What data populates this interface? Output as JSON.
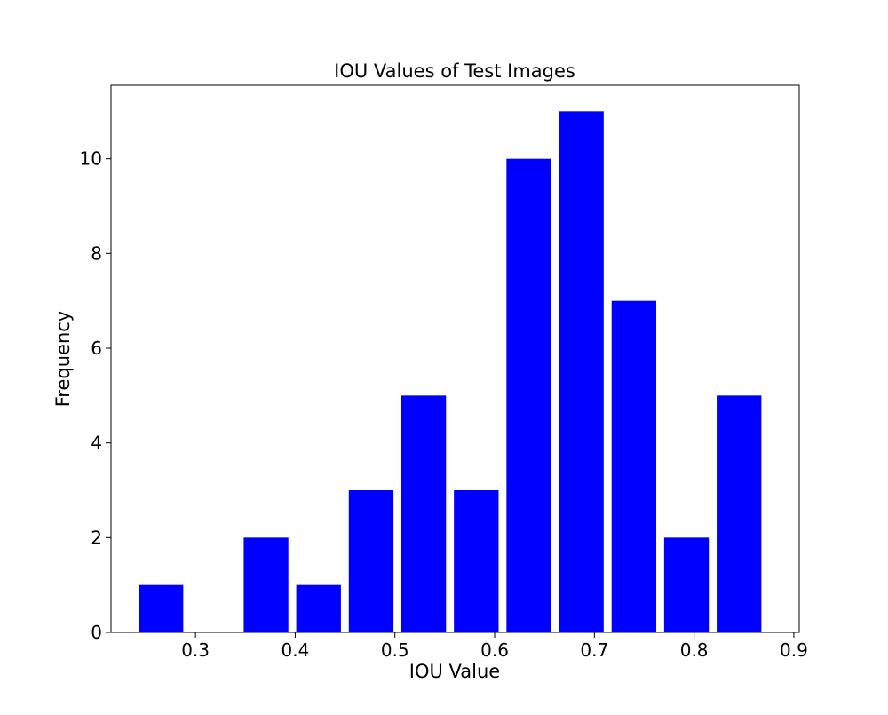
{
  "chart_data": {
    "type": "bar",
    "title": "IOU Values of Test Images",
    "xlabel": "IOU Value",
    "ylabel": "Frequency",
    "bin_width": 0.0527,
    "bar_rwidth": 0.85,
    "bins": [
      {
        "start": 0.239,
        "count": 1
      },
      {
        "start": 0.2917,
        "count": 0
      },
      {
        "start": 0.3444,
        "count": 2
      },
      {
        "start": 0.3971,
        "count": 1
      },
      {
        "start": 0.4498,
        "count": 3
      },
      {
        "start": 0.5025,
        "count": 5
      },
      {
        "start": 0.5552,
        "count": 3
      },
      {
        "start": 0.6079,
        "count": 10
      },
      {
        "start": 0.6606,
        "count": 11
      },
      {
        "start": 0.7133,
        "count": 7
      },
      {
        "start": 0.766,
        "count": 2
      },
      {
        "start": 0.8187,
        "count": 5
      }
    ],
    "xlim": [
      0.2153,
      0.9054
    ],
    "ylim": [
      0,
      11.55
    ],
    "xticks": [
      0.3,
      0.4,
      0.5,
      0.6,
      0.7,
      0.8,
      0.9
    ],
    "xtick_labels": [
      "0.3",
      "0.4",
      "0.5",
      "0.6",
      "0.7",
      "0.8",
      "0.9"
    ],
    "yticks": [
      0,
      2,
      4,
      6,
      8,
      10
    ],
    "ytick_labels": [
      "0",
      "2",
      "4",
      "6",
      "8",
      "10"
    ],
    "grid": false,
    "bar_color": "#0000ff"
  }
}
